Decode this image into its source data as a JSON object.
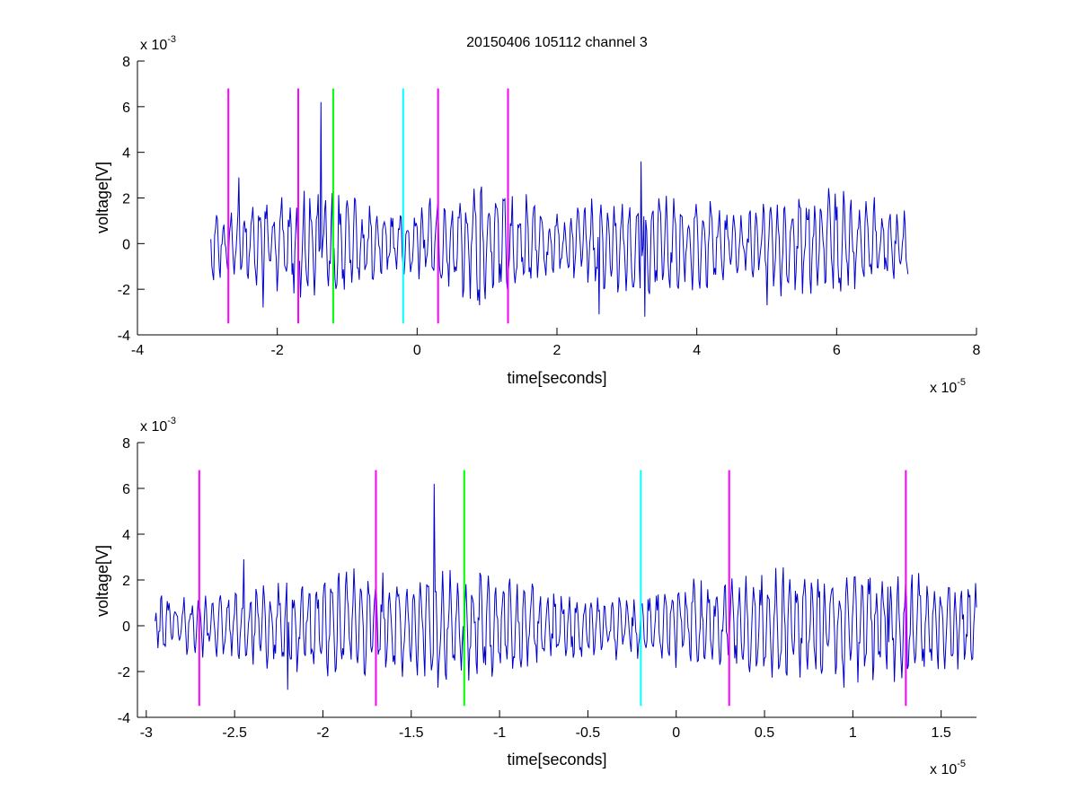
{
  "chart_data": [
    {
      "type": "line",
      "title": "20150406 105112 channel 3",
      "xlabel": "time[seconds]",
      "ylabel": "voltage[V]",
      "x_multiplier": "x 10",
      "x_exponent": "-5",
      "y_multiplier": "x 10",
      "y_exponent": "-3",
      "xlim": [
        -4,
        8
      ],
      "ylim": [
        -4,
        8
      ],
      "xticks": [
        -4,
        -2,
        0,
        2,
        4,
        6,
        8
      ],
      "xtick_labels": [
        "-4",
        "-2",
        "0",
        "2",
        "4",
        "6",
        "8"
      ],
      "yticks": [
        -4,
        -2,
        0,
        2,
        4,
        6,
        8
      ],
      "ytick_labels": [
        "-4",
        "-2",
        "0",
        "2",
        "4",
        "6",
        "8"
      ],
      "grid": false,
      "signal": {
        "color": "#0000cc",
        "x_start": -2.95,
        "x_end": 7.02,
        "key_points": [
          {
            "x": -2.95,
            "y": 0.2
          },
          {
            "x": -2.55,
            "y": 2.9
          },
          {
            "x": -2.2,
            "y": -2.8
          },
          {
            "x": -1.37,
            "y": 6.2
          },
          {
            "x": -1.2,
            "y": -2.0
          },
          {
            "x": 0.9,
            "y": -2.7
          },
          {
            "x": 2.6,
            "y": -3.1
          },
          {
            "x": 3.2,
            "y": 3.6
          },
          {
            "x": 3.25,
            "y": -3.2
          },
          {
            "x": 5.0,
            "y": -2.7
          },
          {
            "x": 7.0,
            "y": -1.0
          }
        ]
      },
      "vlines": [
        {
          "x": -2.7,
          "color": "#ff00ff"
        },
        {
          "x": -1.7,
          "color": "#ff00ff"
        },
        {
          "x": -1.2,
          "color": "#00ff00"
        },
        {
          "x": -0.2,
          "color": "#00ffff"
        },
        {
          "x": 0.3,
          "color": "#ff00ff"
        },
        {
          "x": 1.3,
          "color": "#ff00ff"
        }
      ],
      "vline_y_range": [
        -3.5,
        6.8
      ]
    },
    {
      "type": "line",
      "title": "",
      "xlabel": "time[seconds]",
      "ylabel": "voltage[V]",
      "x_multiplier": "x 10",
      "x_exponent": "-5",
      "y_multiplier": "x 10",
      "y_exponent": "-3",
      "xlim": [
        -3.05,
        1.7
      ],
      "ylim": [
        -4,
        8
      ],
      "xticks": [
        -3,
        -2.5,
        -2,
        -1.5,
        -1,
        -0.5,
        0,
        0.5,
        1,
        1.5
      ],
      "xtick_labels": [
        "-3",
        "-2.5",
        "-2",
        "-1.5",
        "-1",
        "-0.5",
        "0",
        "0.5",
        "1",
        "1.5"
      ],
      "yticks": [
        -4,
        -2,
        0,
        2,
        4,
        6,
        8
      ],
      "ytick_labels": [
        "-4",
        "-2",
        "0",
        "2",
        "4",
        "6",
        "8"
      ],
      "grid": false,
      "signal": {
        "color": "#0000cc",
        "x_start": -2.95,
        "x_end": 1.7,
        "key_points": [
          {
            "x": -2.95,
            "y": 0.2
          },
          {
            "x": -2.45,
            "y": 2.9
          },
          {
            "x": -2.2,
            "y": -2.8
          },
          {
            "x": -1.37,
            "y": 6.2
          },
          {
            "x": -1.35,
            "y": -2.7
          },
          {
            "x": -1.2,
            "y": -1.7
          },
          {
            "x": 0.95,
            "y": -2.7
          },
          {
            "x": 1.2,
            "y": 1.7
          },
          {
            "x": 1.7,
            "y": 0.8
          }
        ]
      },
      "vlines": [
        {
          "x": -2.7,
          "color": "#ff00ff"
        },
        {
          "x": -1.7,
          "color": "#ff00ff"
        },
        {
          "x": -1.2,
          "color": "#00ff00"
        },
        {
          "x": -0.2,
          "color": "#00ffff"
        },
        {
          "x": 0.3,
          "color": "#ff00ff"
        },
        {
          "x": 1.3,
          "color": "#ff00ff"
        }
      ],
      "vline_y_range": [
        -3.5,
        6.8
      ]
    }
  ]
}
